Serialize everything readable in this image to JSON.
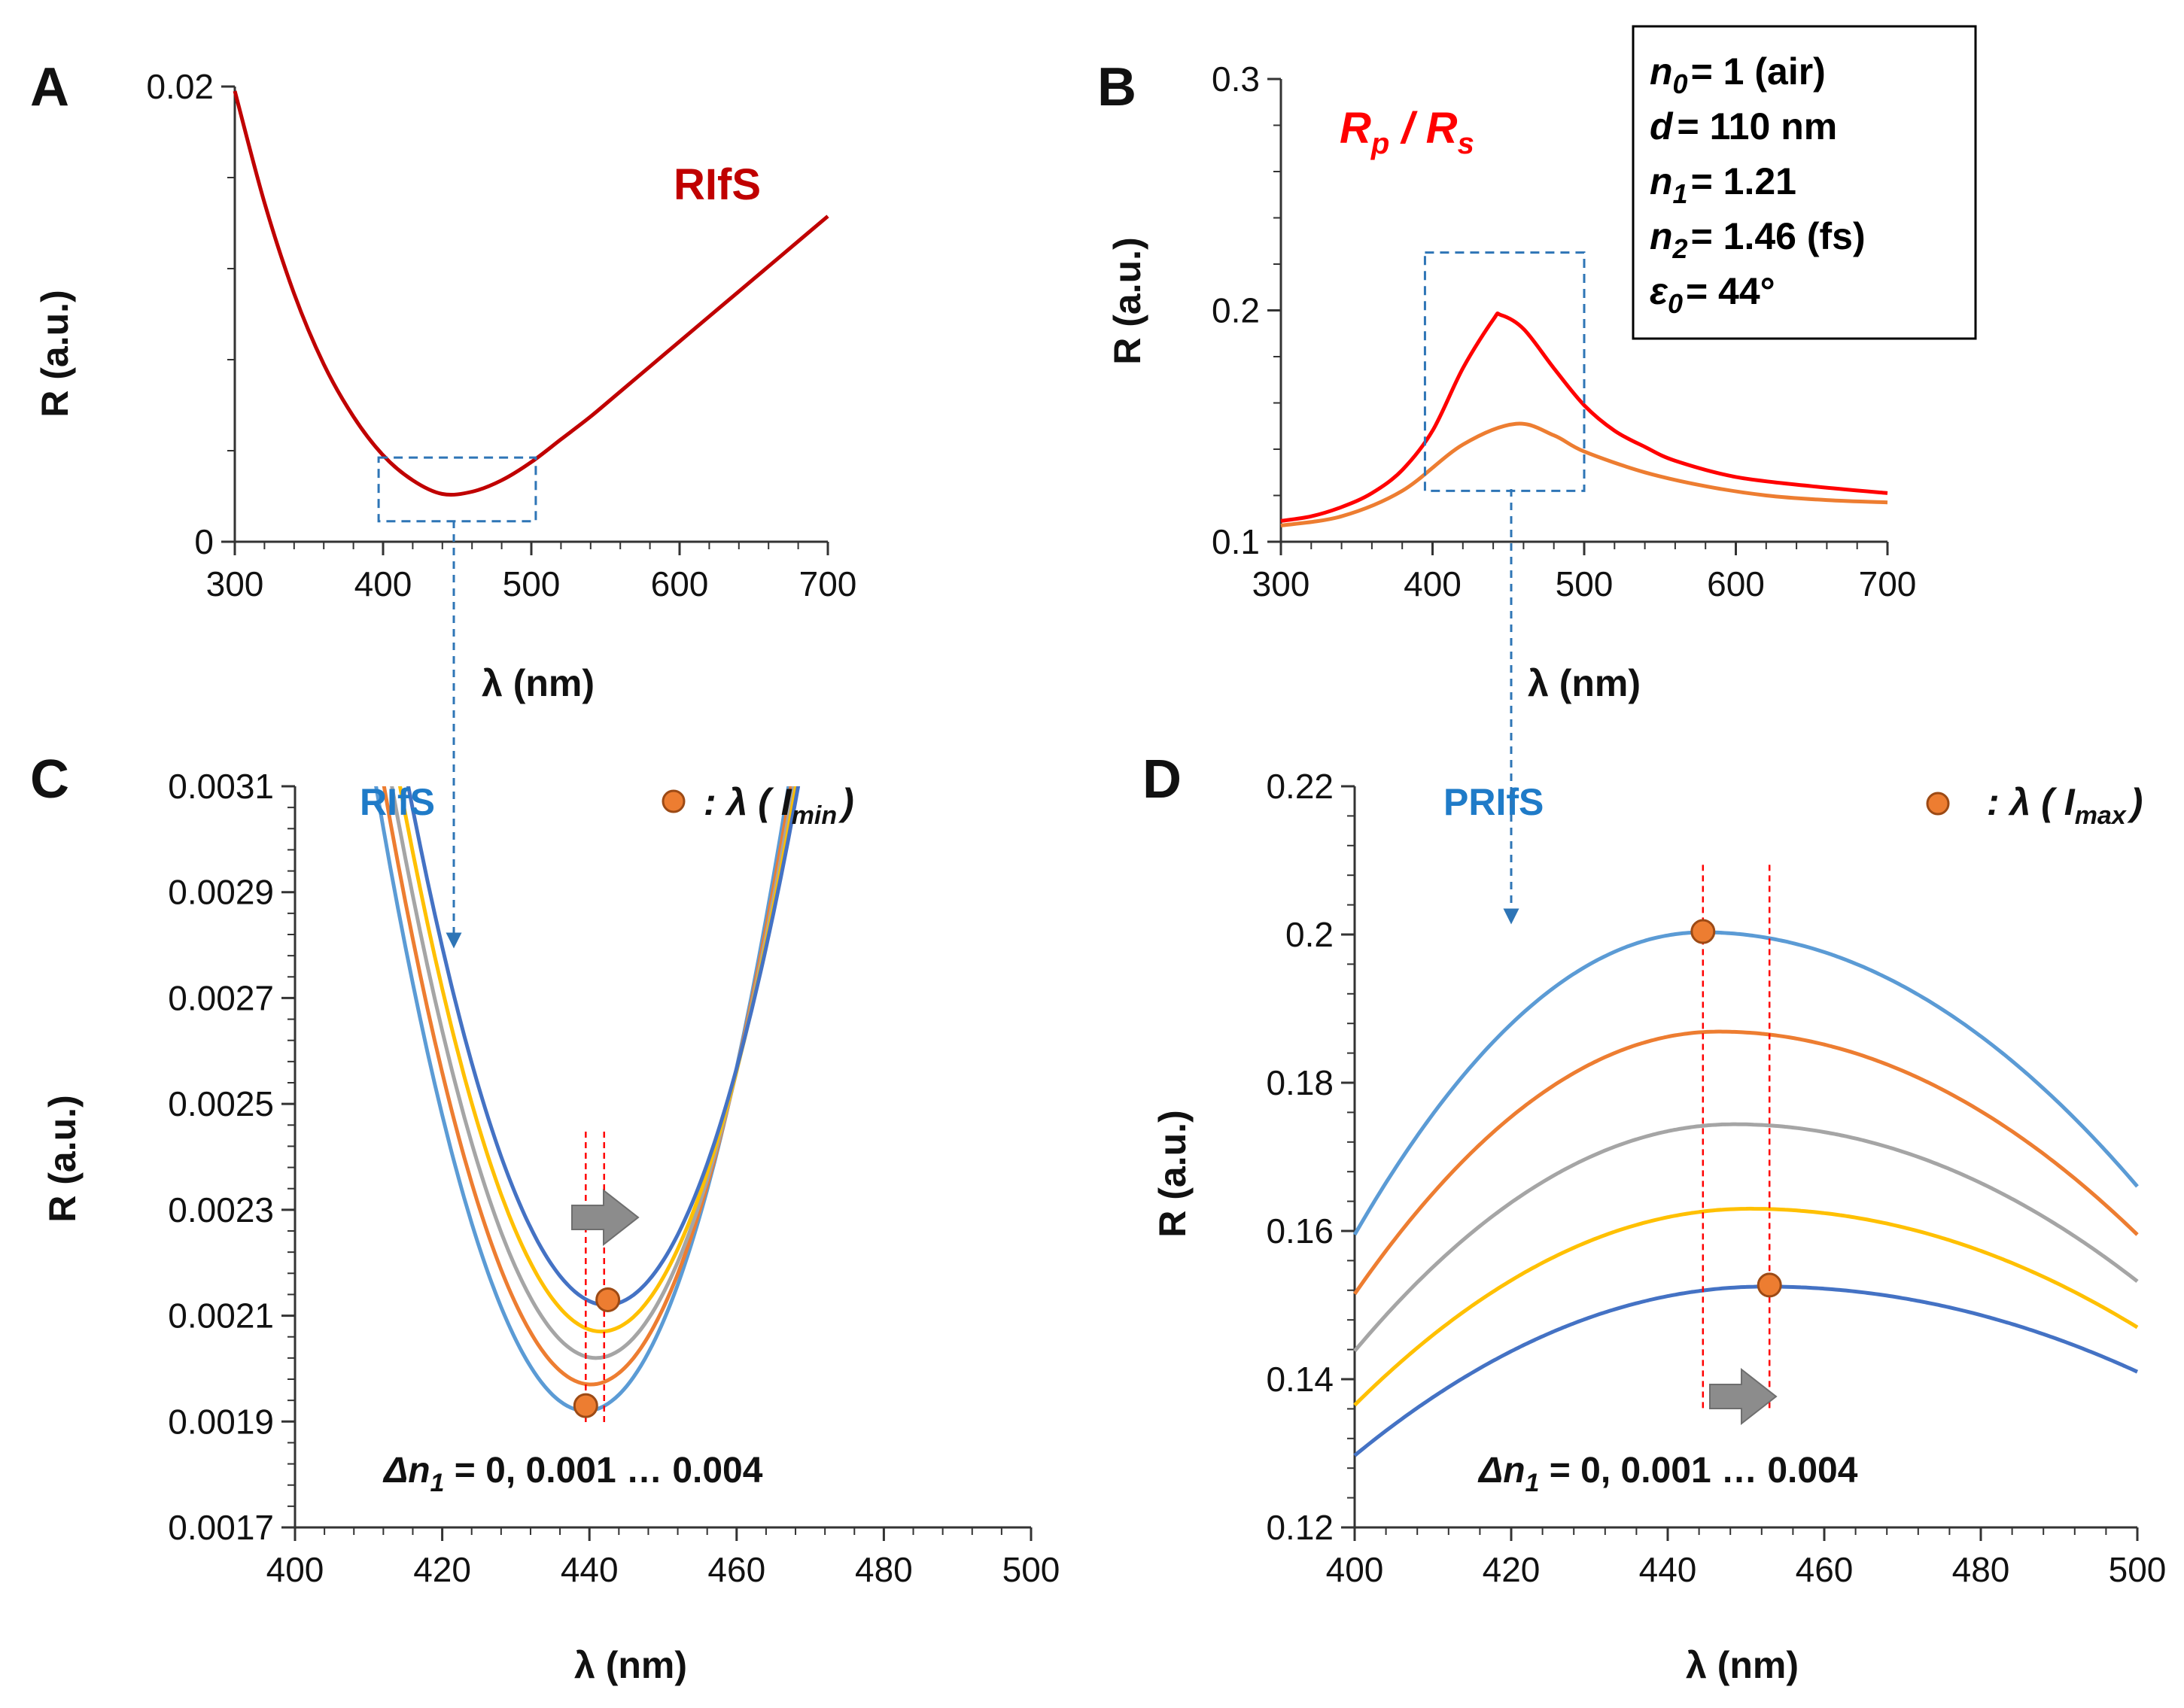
{
  "colors": {
    "dark_red": "#C00000",
    "bright_red": "#FF0000",
    "orange": "#ED7D31",
    "blue_label": "#1F7BC8",
    "light_blue": "#5B9BD5",
    "gray": "#A5A5A5",
    "yellow": "#FFC000",
    "dark_blue": "#4472C4",
    "dashed_blue": "#2E75B6",
    "arrow_gray": "#8C8C8C"
  },
  "params": {
    "n0": {
      "sym": "n",
      "sub": "0",
      "val": "= 1 (air)"
    },
    "d": {
      "sym": "d",
      "val": "= 110 nm"
    },
    "n1": {
      "sym": "n",
      "sub": "1",
      "val": "= 1.21"
    },
    "n2": {
      "sym": "n",
      "sub": "2",
      "val": "= 1.46 (fs)"
    },
    "eps0": {
      "sym": "ε",
      "sub": "0",
      "val": "= 44°"
    }
  },
  "chart_data": [
    {
      "panel": "A",
      "type": "line",
      "xlabel": "λ (nm)",
      "ylabel": "R (a.u.)",
      "xlim": [
        300,
        700
      ],
      "ylim": [
        0,
        0.02
      ],
      "xticks": [
        "300",
        "400",
        "500",
        "600",
        "700"
      ],
      "yticks": [
        "0",
        "0.02"
      ],
      "annotation": "RIfS",
      "zoom_box": {
        "x": [
          397,
          503
        ],
        "y": [
          0.0009,
          0.0037
        ]
      },
      "series": [
        {
          "name": "RIfS",
          "color": "#C00000",
          "x": [
            300,
            320,
            340,
            360,
            380,
            400,
            420,
            440,
            460,
            480,
            500,
            520,
            540,
            560,
            580,
            600,
            620,
            640,
            660,
            680,
            700
          ],
          "y": [
            0.0198,
            0.0149,
            0.0109,
            0.0078,
            0.0055,
            0.0038,
            0.0027,
            0.0021,
            0.0022,
            0.0027,
            0.0035,
            0.0045,
            0.0055,
            0.0066,
            0.0077,
            0.0088,
            0.0099,
            0.011,
            0.0121,
            0.0132,
            0.0143
          ]
        }
      ]
    },
    {
      "panel": "B",
      "type": "line",
      "xlabel": "λ (nm)",
      "ylabel": "R (a.u.)",
      "xlim": [
        300,
        700
      ],
      "ylim": [
        0.1,
        0.3
      ],
      "xticks": [
        "300",
        "400",
        "500",
        "600",
        "700"
      ],
      "yticks": [
        "0.1",
        "0.2",
        "0.3"
      ],
      "annotation": {
        "main": "R",
        "sub1": "p",
        "sep": " / ",
        "main2": "R",
        "sub2": "s"
      },
      "zoom_box": {
        "x": [
          395,
          500
        ],
        "y": [
          0.122,
          0.225
        ]
      },
      "series": [
        {
          "name": "Rp",
          "color": "#FF0000",
          "x": [
            300,
            320,
            340,
            360,
            380,
            400,
            420,
            440,
            445,
            460,
            480,
            500,
            520,
            540,
            560,
            600,
            650,
            700
          ],
          "y": [
            0.109,
            0.111,
            0.115,
            0.121,
            0.131,
            0.148,
            0.175,
            0.196,
            0.198,
            0.192,
            0.175,
            0.159,
            0.148,
            0.141,
            0.135,
            0.128,
            0.124,
            0.121
          ]
        },
        {
          "name": "Rs",
          "color": "#ED7D31",
          "x": [
            300,
            340,
            380,
            420,
            455,
            480,
            500,
            540,
            580,
            620,
            660,
            700
          ],
          "y": [
            0.107,
            0.111,
            0.122,
            0.142,
            0.151,
            0.146,
            0.139,
            0.13,
            0.124,
            0.12,
            0.118,
            0.117
          ]
        }
      ]
    },
    {
      "panel": "C",
      "type": "line",
      "xlabel": "λ (nm)",
      "ylabel": "R (a.u.)",
      "xlim": [
        400,
        500
      ],
      "ylim": [
        0.0017,
        0.0031
      ],
      "xticks": [
        "400",
        "420",
        "440",
        "460",
        "480",
        "500"
      ],
      "yticks": [
        "0.0017",
        "0.0019",
        "0.0021",
        "0.0023",
        "0.0025",
        "0.0027",
        "0.0029",
        "0.0031"
      ],
      "method_label": "RIfS",
      "legend": {
        "text": ": λ ( I",
        "sub": "min",
        "close": ")"
      },
      "footnote": {
        "pre": "Δn",
        "sub": "1",
        "post": " = 0, 0.001 … 0.004"
      },
      "marker_points": [
        {
          "x": 439.5,
          "y": 0.00193
        },
        {
          "x": 442.5,
          "y": 0.00213
        }
      ],
      "vlines": [
        439.5,
        442
      ],
      "series": [
        {
          "name": "Δn1 = 0",
          "color": "#5B9BD5",
          "min_x": 439.5,
          "min_y": 0.00192,
          "curv": 1.505e-06
        },
        {
          "name": "Δn1 = 0.001",
          "color": "#ED7D31",
          "min_x": 440.2,
          "min_y": 0.00197,
          "curv": 1.48e-06
        },
        {
          "name": "Δn1 = 0.002",
          "color": "#A5A5A5",
          "min_x": 440.9,
          "min_y": 0.00202,
          "curv": 1.452e-06
        },
        {
          "name": "Δn1 = 0.003",
          "color": "#FFC000",
          "min_x": 441.6,
          "min_y": 0.00207,
          "curv": 1.425e-06
        },
        {
          "name": "Δn1 = 0.004",
          "color": "#4472C4",
          "min_x": 442.3,
          "min_y": 0.00212,
          "curv": 1.398e-06
        }
      ]
    },
    {
      "panel": "D",
      "type": "line",
      "xlabel": "λ (nm)",
      "ylabel": "R (a.u.)",
      "xlim": [
        400,
        500
      ],
      "ylim": [
        0.12,
        0.22
      ],
      "xticks": [
        "400",
        "420",
        "440",
        "460",
        "480",
        "500"
      ],
      "yticks": [
        "0.12",
        "0.14",
        "0.16",
        "0.18",
        "0.2",
        "0.22"
      ],
      "method_label": "PRIfS",
      "legend": {
        "text": ": λ ( I",
        "sub": "max",
        "close": ")"
      },
      "footnote": {
        "pre": "Δn",
        "sub": "1",
        "post": " = 0, 0.001 … 0.004"
      },
      "marker_points": [
        {
          "x": 444.5,
          "y": 0.2004
        },
        {
          "x": 453,
          "y": 0.1527
        }
      ],
      "vlines": [
        444.5,
        453
      ],
      "series": [
        {
          "name": "Δn1 = 0",
          "color": "#5B9BD5",
          "peak_x": 444.5,
          "peak_y": 0.2003,
          "y400": 0.1595,
          "y500": 0.166
        },
        {
          "name": "Δn1 = 0.001",
          "color": "#ED7D31",
          "peak_x": 446.5,
          "peak_y": 0.1869,
          "y400": 0.1515,
          "y500": 0.1595
        },
        {
          "name": "Δn1 = 0.002",
          "color": "#A5A5A5",
          "peak_x": 448.5,
          "peak_y": 0.1744,
          "y400": 0.1438,
          "y500": 0.1532
        },
        {
          "name": "Δn1 = 0.003",
          "color": "#FFC000",
          "peak_x": 450.5,
          "peak_y": 0.163,
          "y400": 0.1365,
          "y500": 0.147
        },
        {
          "name": "Δn1 = 0.004",
          "color": "#4472C4",
          "peak_x": 452.5,
          "peak_y": 0.1525,
          "y400": 0.1297,
          "y500": 0.141
        }
      ]
    }
  ]
}
